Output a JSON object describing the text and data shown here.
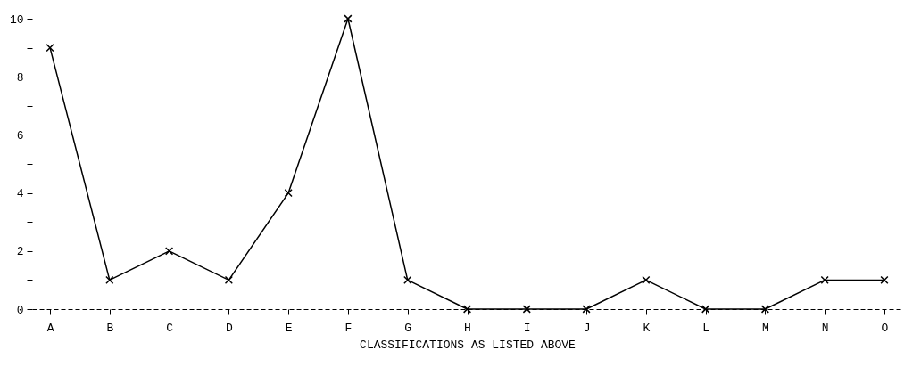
{
  "chart_data": {
    "type": "line",
    "xlabel": "CLASSIFICATIONS  AS  LISTED  ABOVE",
    "categories": [
      "A",
      "B",
      "C",
      "D",
      "E",
      "F",
      "G",
      "H",
      "I",
      "J",
      "K",
      "L",
      "M",
      "N",
      "O"
    ],
    "series": [
      {
        "color": "#000000",
        "values": [
          9,
          1,
          2,
          1,
          4,
          10,
          1,
          0,
          0,
          0,
          1,
          0,
          0,
          1,
          1
        ]
      }
    ],
    "ylim": [
      0,
      10
    ],
    "yticks": [
      0,
      {
        "value": 1,
        "label": null
      },
      2,
      {
        "value": 3,
        "label": null
      },
      4,
      {
        "value": 5,
        "label": null
      },
      6,
      {
        "value": 7,
        "label": null
      },
      8,
      {
        "value": 9,
        "label": null
      },
      10
    ],
    "grid": false,
    "legend": false,
    "marker": "cross",
    "line_style": "solid"
  }
}
